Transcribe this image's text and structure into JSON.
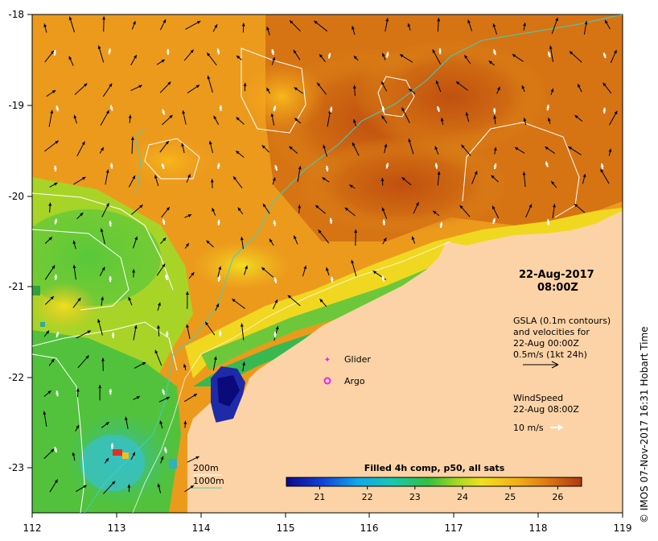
{
  "colors": {
    "land": "#fcd3a6",
    "bathy_200": "#ffffff",
    "bathy_1000": "#3fd0c0",
    "glider": "#ee22ee",
    "argo": "#ee22ee",
    "current_arrow": "#000000",
    "wind_arrow": "#ffffff"
  },
  "axes": {
    "lon_ticks": [
      "112",
      "113",
      "114",
      "115",
      "116",
      "117",
      "118",
      "119"
    ],
    "lat_ticks": [
      "-18",
      "-19",
      "-20",
      "-21",
      "-22",
      "-23"
    ]
  },
  "annotation": {
    "date": "22-Aug-2017",
    "time": "08:00Z"
  },
  "gsla_legend": {
    "line1": "GSLA (0.1m contours)",
    "line2": "and velocities for",
    "line3": "22-Aug 00:00Z",
    "line4": "0.5m/s (1kt 24h)"
  },
  "wind_legend": {
    "line1": "WindSpeed",
    "line2": "22-Aug 08:00Z",
    "line3": "10 m/s"
  },
  "symbols": {
    "glider": "Glider",
    "argo": "Argo"
  },
  "bathymetry": {
    "label_200": "200m",
    "label_1000": "1000m"
  },
  "colorbar": {
    "title": "Filled 4h comp, p50, all sats",
    "ticks": [
      "21",
      "22",
      "23",
      "24",
      "25",
      "26"
    ],
    "min": 20.3,
    "max": 26.5
  },
  "credit": "© IMOS 07-Nov-2017 16:31 Hobart Time"
}
